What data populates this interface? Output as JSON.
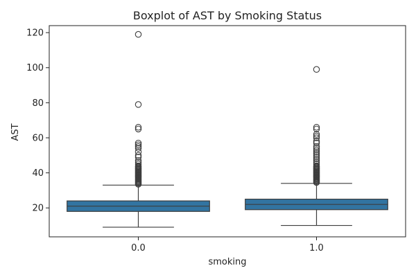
{
  "chart_data": {
    "type": "boxplot",
    "title": "Boxplot of AST by Smoking Status",
    "xlabel": "smoking",
    "ylabel": "AST",
    "categories": [
      "0.0",
      "1.0"
    ],
    "ylim": [
      3.5,
      124
    ],
    "yticks": [
      20,
      40,
      60,
      80,
      100,
      120
    ],
    "grid": false,
    "legend": "none",
    "colors": {
      "box": "#3274a1",
      "line": "#3d3d3d"
    },
    "boxes": [
      {
        "category": "0.0",
        "whisker_low": 9,
        "q1": 18,
        "median": 21,
        "q3": 24,
        "whisker_high": 33,
        "outliers": [
          119,
          79,
          66,
          65,
          57,
          56,
          55,
          54,
          52,
          50,
          49,
          47,
          46,
          45,
          44,
          43.5,
          43,
          42.5,
          42,
          41.5,
          41,
          40.5,
          40,
          39.5,
          39,
          38.5,
          38,
          37.5,
          37,
          36.5,
          36,
          35.5,
          35,
          34.5,
          34,
          33.5
        ]
      },
      {
        "category": "1.0",
        "whisker_low": 10,
        "q1": 19,
        "median": 22,
        "q3": 25,
        "whisker_high": 34,
        "outliers": [
          99,
          66,
          65,
          62,
          61,
          60,
          58,
          57,
          55,
          54,
          53,
          52,
          51,
          50,
          49,
          48,
          47,
          46,
          45,
          44,
          43.5,
          43,
          42.5,
          42,
          41.5,
          41,
          40.5,
          40,
          39.5,
          39,
          38.5,
          38,
          37.5,
          37,
          36.5,
          36,
          35.5,
          35,
          34.5
        ]
      }
    ]
  }
}
